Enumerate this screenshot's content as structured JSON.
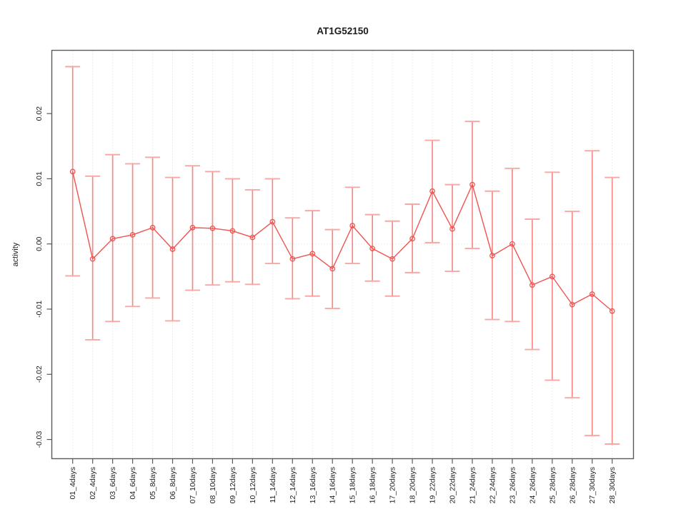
{
  "figure": {
    "title": "AT1G52150",
    "ylabel": "activity"
  },
  "chart_data": {
    "type": "line",
    "title": "AT1G52150",
    "xlabel": "",
    "ylabel": "activity",
    "legend": "none",
    "grid": "vertical dotted gridline per category, dotted horizontal line at y=0",
    "marker": "open-circle",
    "error_bars": true,
    "ylim": [
      -0.033,
      0.0297
    ],
    "yticks": [
      0.02,
      0.01,
      0.0,
      -0.01,
      -0.02,
      -0.03
    ],
    "ytick_labels": [
      "0.02",
      "0.01",
      "0.00",
      "-0.01",
      "-0.02",
      "-0.03"
    ],
    "categories": [
      "01_4days",
      "02_4days",
      "03_6days",
      "04_6days",
      "05_8days",
      "06_8days",
      "07_10days",
      "08_10days",
      "09_12days",
      "10_12days",
      "11_14days",
      "12_14days",
      "13_16days",
      "14_16days",
      "15_18days",
      "16_18days",
      "17_20days",
      "18_20days",
      "19_22days",
      "20_22days",
      "21_24days",
      "22_24days",
      "23_26days",
      "24_26days",
      "25_28days",
      "26_28days",
      "27_30days",
      "28_30days"
    ],
    "series": [
      {
        "name": "activity",
        "values": [
          0.0111,
          -0.0023,
          0.0008,
          0.0014,
          0.0025,
          -0.0008,
          0.0025,
          0.0024,
          0.002,
          0.001,
          0.0034,
          -0.0023,
          -0.0015,
          -0.0038,
          0.0028,
          -0.0007,
          -0.0023,
          0.0008,
          0.0081,
          0.0023,
          0.0091,
          -0.0018,
          0.0,
          -0.0063,
          -0.005,
          -0.0093,
          -0.0077,
          -0.0103
        ],
        "error_upper": [
          0.0272,
          0.0104,
          0.0137,
          0.0123,
          0.0133,
          0.0102,
          0.012,
          0.0111,
          0.01,
          0.0083,
          0.01,
          0.004,
          0.0051,
          0.0022,
          0.0087,
          0.0045,
          0.0035,
          0.0061,
          0.0159,
          0.0091,
          0.0188,
          0.0081,
          0.0116,
          0.0038,
          0.011,
          0.005,
          0.0143,
          0.0102
        ],
        "error_lower": [
          -0.0049,
          -0.0147,
          -0.0119,
          -0.0096,
          -0.0083,
          -0.0118,
          -0.0071,
          -0.0063,
          -0.0058,
          -0.0062,
          -0.003,
          -0.0084,
          -0.008,
          -0.0099,
          -0.003,
          -0.0057,
          -0.008,
          -0.0044,
          0.0002,
          -0.0042,
          -0.0007,
          -0.0116,
          -0.0119,
          -0.0162,
          -0.0209,
          -0.0236,
          -0.0294,
          -0.0307
        ]
      }
    ],
    "colors": {
      "series": "#f0534f",
      "error_bar": "#f68a87",
      "error_cap": "#f9a7a5",
      "grid": "#d7d7d7",
      "frame": "#5a5a5a",
      "text": "#1c1c1c"
    }
  }
}
